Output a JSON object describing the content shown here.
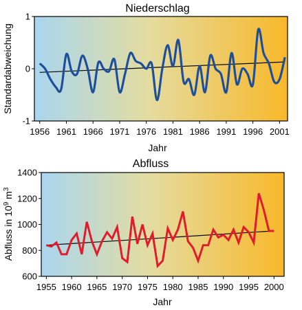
{
  "chart_data": [
    {
      "type": "line",
      "title": "Niederschlag",
      "xlabel": "Jahr",
      "ylabel": "Standardabweichung",
      "xlim": [
        1955,
        2002.5
      ],
      "ylim": [
        -1,
        1
      ],
      "x_ticks": [
        "1956",
        "1961",
        "1966",
        "1971",
        "1976",
        "1981",
        "1986",
        "1991",
        "1996",
        "2001"
      ],
      "y_ticks": [
        "1",
        "0",
        "-1"
      ],
      "line_color": "#1d4f9a",
      "trend_color": "#000000",
      "background_gradient": [
        "#a9d6f0",
        "#f8b82a"
      ],
      "x": [
        1956,
        1957,
        1958,
        1959,
        1960,
        1961,
        1962,
        1963,
        1964,
        1965,
        1966,
        1967,
        1968,
        1969,
        1970,
        1971,
        1972,
        1973,
        1974,
        1975,
        1976,
        1977,
        1978,
        1979,
        1980,
        1981,
        1982,
        1983,
        1984,
        1985,
        1986,
        1987,
        1988,
        1989,
        1990,
        1991,
        1992,
        1993,
        1994,
        1995,
        1996,
        1997,
        1998,
        1999,
        2000,
        2001,
        2002
      ],
      "values": [
        0.1,
        0.0,
        -0.2,
        -0.35,
        -0.4,
        0.28,
        -0.05,
        -0.1,
        0.25,
        0.0,
        -0.45,
        0.12,
        0.0,
        -0.05,
        0.18,
        -0.45,
        -0.1,
        0.3,
        0.15,
        0.1,
        0.0,
        0.1,
        -0.6,
        0.0,
        0.45,
        0.05,
        0.55,
        -0.25,
        -0.2,
        -0.5,
        0.05,
        -0.45,
        0.25,
        0.0,
        -0.1,
        -0.45,
        0.3,
        -0.3,
        0.0,
        -0.1,
        -0.3,
        0.75,
        0.3,
        0.1,
        -0.25,
        -0.2,
        0.22
      ],
      "trend": {
        "x": [
          1956,
          2002
        ],
        "y": [
          -0.07,
          0.13
        ]
      }
    },
    {
      "type": "line",
      "title": "Abfluss",
      "xlabel": "Jahr",
      "ylabel_parts": [
        "Abfluss in 10",
        "9",
        " m",
        "3"
      ],
      "xlim": [
        1954,
        2002
      ],
      "ylim": [
        600,
        1400
      ],
      "x_ticks": [
        "1955",
        "1960",
        "1965",
        "1970",
        "1975",
        "1980",
        "1985",
        "1990",
        "1995",
        "2000"
      ],
      "y_ticks": [
        "1400",
        "1200",
        "1000",
        "800",
        "600"
      ],
      "line_color": "#e01b2a",
      "trend_color": "#000000",
      "background_gradient": [
        "#a9d6f0",
        "#f8b82a"
      ],
      "x": [
        1955,
        1956,
        1957,
        1958,
        1959,
        1960,
        1961,
        1962,
        1963,
        1964,
        1965,
        1966,
        1967,
        1968,
        1969,
        1970,
        1971,
        1972,
        1973,
        1974,
        1975,
        1976,
        1977,
        1978,
        1979,
        1980,
        1981,
        1982,
        1983,
        1984,
        1985,
        1986,
        1987,
        1988,
        1989,
        1990,
        1991,
        1992,
        1993,
        1994,
        1995,
        1996,
        1997,
        1998,
        1999,
        2000
      ],
      "values": [
        840,
        830,
        860,
        770,
        770,
        880,
        930,
        770,
        1020,
        870,
        770,
        870,
        940,
        890,
        980,
        740,
        710,
        1060,
        850,
        1000,
        840,
        930,
        680,
        720,
        970,
        880,
        960,
        1100,
        870,
        820,
        720,
        840,
        840,
        960,
        900,
        920,
        880,
        960,
        860,
        980,
        940,
        860,
        1240,
        1110,
        950,
        950
      ],
      "trend": {
        "x": [
          1955,
          2000
        ],
        "y": [
          840,
          950
        ]
      }
    }
  ]
}
